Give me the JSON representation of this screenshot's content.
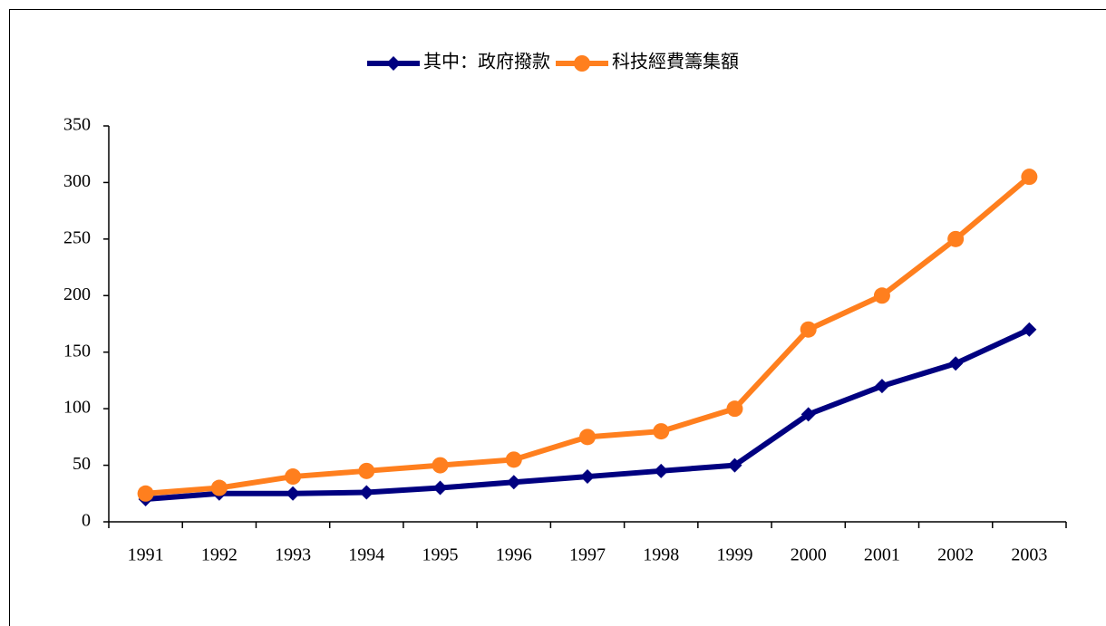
{
  "chart_data": {
    "type": "line",
    "categories": [
      "1991",
      "1992",
      "1993",
      "1994",
      "1995",
      "1996",
      "1997",
      "1998",
      "1999",
      "2000",
      "2001",
      "2002",
      "2003"
    ],
    "series": [
      {
        "name": "其中：政府撥款",
        "color": "#000080",
        "marker": "diamond",
        "values": [
          20,
          25,
          25,
          26,
          30,
          35,
          40,
          45,
          50,
          95,
          120,
          140,
          170
        ]
      },
      {
        "name": "科技經費籌集額",
        "color": "#ff7f1e",
        "marker": "circle",
        "values": [
          25,
          30,
          40,
          45,
          50,
          55,
          75,
          80,
          100,
          170,
          200,
          250,
          305
        ]
      }
    ],
    "ylim": [
      0,
      350
    ],
    "yticks": [
      0,
      50,
      100,
      150,
      200,
      250,
      300,
      350
    ],
    "grid": false,
    "legend": "top"
  }
}
